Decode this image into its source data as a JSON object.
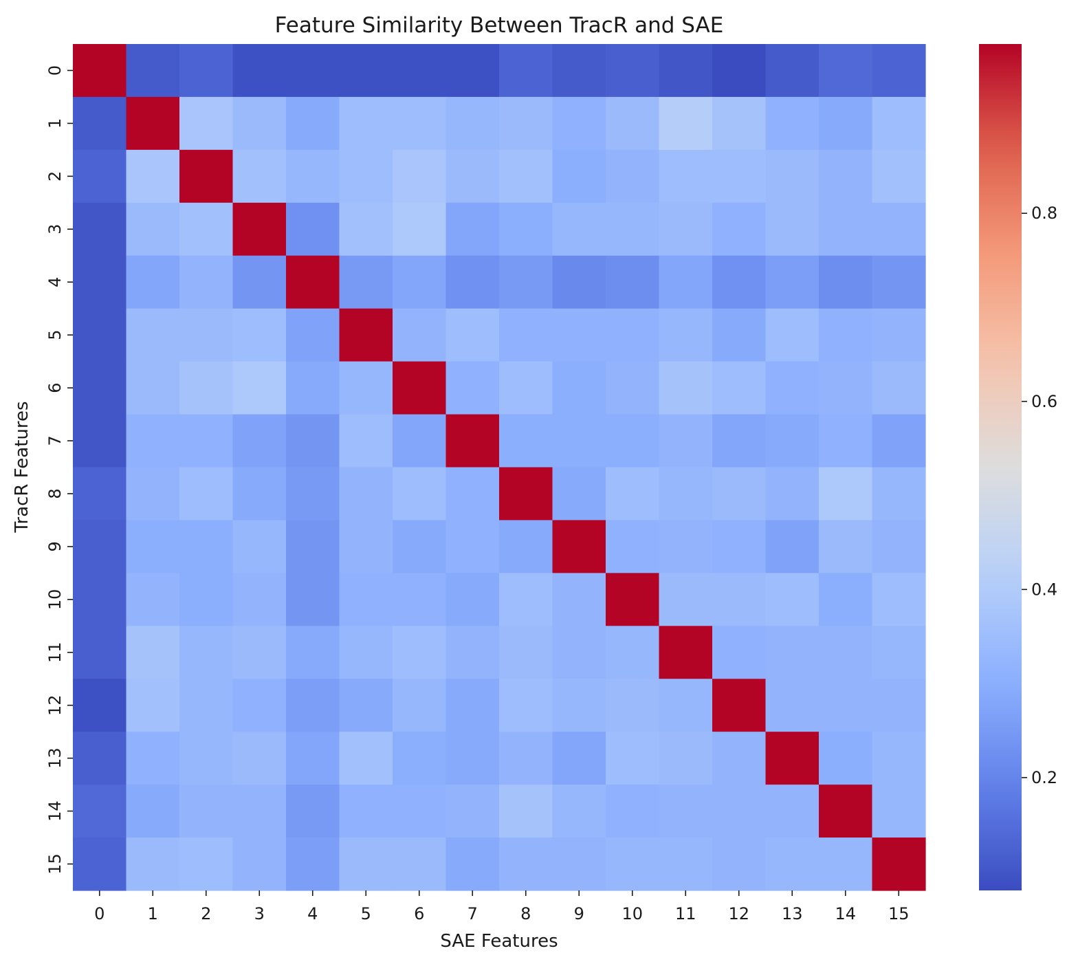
{
  "chart_data": {
    "type": "heatmap",
    "title": "Feature Similarity Between TracR and SAE",
    "xlabel": "SAE Features",
    "ylabel": "TracR Features",
    "x_categories": [
      "0",
      "1",
      "2",
      "3",
      "4",
      "5",
      "6",
      "7",
      "8",
      "9",
      "10",
      "11",
      "12",
      "13",
      "14",
      "15"
    ],
    "y_categories": [
      "0",
      "1",
      "2",
      "3",
      "4",
      "5",
      "6",
      "7",
      "8",
      "9",
      "10",
      "11",
      "12",
      "13",
      "14",
      "15"
    ],
    "colormap": "coolwarm",
    "vmin": 0.08,
    "vmax": 0.98,
    "colorbar": {
      "ticks": [
        0.2,
        0.4,
        0.6,
        0.8
      ],
      "tick_labels": [
        "0.2",
        "0.4",
        "0.6",
        "0.8"
      ]
    },
    "values": [
      [
        0.98,
        0.11,
        0.13,
        0.09,
        0.09,
        0.09,
        0.09,
        0.09,
        0.13,
        0.11,
        0.12,
        0.1,
        0.08,
        0.11,
        0.14,
        0.13
      ],
      [
        0.11,
        0.98,
        0.38,
        0.34,
        0.29,
        0.35,
        0.35,
        0.33,
        0.34,
        0.31,
        0.34,
        0.41,
        0.37,
        0.31,
        0.29,
        0.35
      ],
      [
        0.13,
        0.38,
        0.98,
        0.36,
        0.33,
        0.35,
        0.38,
        0.34,
        0.36,
        0.3,
        0.32,
        0.35,
        0.35,
        0.34,
        0.32,
        0.36
      ],
      [
        0.1,
        0.34,
        0.36,
        0.98,
        0.23,
        0.36,
        0.39,
        0.28,
        0.3,
        0.33,
        0.33,
        0.34,
        0.31,
        0.34,
        0.32,
        0.32
      ],
      [
        0.1,
        0.28,
        0.32,
        0.24,
        0.98,
        0.25,
        0.28,
        0.23,
        0.25,
        0.21,
        0.22,
        0.28,
        0.23,
        0.26,
        0.22,
        0.24
      ],
      [
        0.1,
        0.34,
        0.34,
        0.35,
        0.27,
        0.98,
        0.32,
        0.35,
        0.31,
        0.31,
        0.31,
        0.33,
        0.29,
        0.35,
        0.31,
        0.32
      ],
      [
        0.1,
        0.34,
        0.37,
        0.39,
        0.29,
        0.33,
        0.98,
        0.31,
        0.35,
        0.3,
        0.32,
        0.37,
        0.35,
        0.31,
        0.32,
        0.34
      ],
      [
        0.1,
        0.31,
        0.31,
        0.27,
        0.24,
        0.35,
        0.28,
        0.98,
        0.3,
        0.3,
        0.3,
        0.32,
        0.28,
        0.29,
        0.31,
        0.27
      ],
      [
        0.13,
        0.32,
        0.35,
        0.29,
        0.25,
        0.32,
        0.35,
        0.31,
        0.98,
        0.29,
        0.35,
        0.33,
        0.34,
        0.32,
        0.39,
        0.33
      ],
      [
        0.12,
        0.3,
        0.3,
        0.33,
        0.24,
        0.32,
        0.29,
        0.31,
        0.29,
        0.98,
        0.31,
        0.32,
        0.31,
        0.27,
        0.34,
        0.32
      ],
      [
        0.12,
        0.32,
        0.3,
        0.32,
        0.24,
        0.31,
        0.31,
        0.29,
        0.35,
        0.32,
        0.98,
        0.34,
        0.34,
        0.35,
        0.3,
        0.35
      ],
      [
        0.12,
        0.37,
        0.33,
        0.34,
        0.29,
        0.33,
        0.35,
        0.32,
        0.34,
        0.32,
        0.33,
        0.98,
        0.31,
        0.32,
        0.32,
        0.33
      ],
      [
        0.09,
        0.36,
        0.33,
        0.31,
        0.26,
        0.29,
        0.33,
        0.29,
        0.35,
        0.33,
        0.34,
        0.33,
        0.98,
        0.32,
        0.32,
        0.32
      ],
      [
        0.12,
        0.31,
        0.33,
        0.34,
        0.28,
        0.36,
        0.3,
        0.29,
        0.32,
        0.28,
        0.35,
        0.34,
        0.32,
        0.98,
        0.3,
        0.33
      ],
      [
        0.14,
        0.29,
        0.32,
        0.32,
        0.25,
        0.31,
        0.31,
        0.32,
        0.37,
        0.33,
        0.31,
        0.32,
        0.32,
        0.32,
        0.98,
        0.33
      ],
      [
        0.13,
        0.34,
        0.35,
        0.32,
        0.26,
        0.34,
        0.34,
        0.29,
        0.32,
        0.32,
        0.33,
        0.33,
        0.32,
        0.33,
        0.33,
        0.98
      ]
    ]
  }
}
